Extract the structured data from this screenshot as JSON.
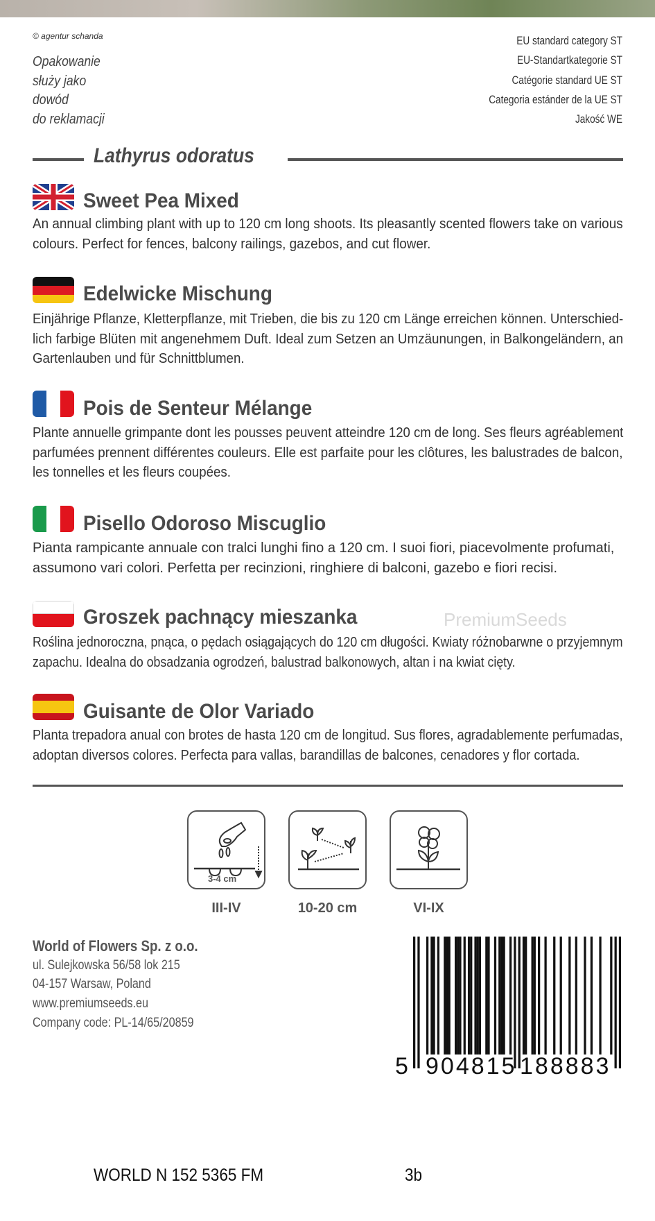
{
  "header": {
    "copyright": "© agentur schanda",
    "complaint_note": [
      "Opakowanie",
      "służy jako",
      "dowód",
      "do reklamacji"
    ],
    "eu_category": [
      "EU standard category ST",
      "EU-Standartkategorie ST",
      "Catégorie standard UE ST",
      "Categoria estánder de la UE ST",
      "Jakość WE"
    ]
  },
  "latin_name": "Lathyrus odoratus",
  "watermark": "PremiumSeeds",
  "sections": [
    {
      "flag": "uk-flag",
      "title": "Sweet Pea Mixed",
      "lines": [
        "An annual climbing plant with up to 120 cm long shoots. Its pleasantly scented flowers take on various",
        "colours. Perfect for fences, balcony railings, gazebos, and cut flower."
      ]
    },
    {
      "flag": "germany-flag",
      "title": "Edelwicke Mischung",
      "lines": [
        "Einjährige Pflanze, Kletterpflanze, mit Trieben, die bis zu 120 cm Länge erreichen können. Unterschied-",
        "lich farbige Blüten mit angenehmem Duft. Ideal zum Setzen an Umzäunungen, in Balkongeländern, an",
        "Gartenlauben und für Schnittblumen."
      ]
    },
    {
      "flag": "france-flag",
      "title": "Pois de Senteur Mélange",
      "lines": [
        "Plante annuelle grimpante dont les pousses peuvent atteindre 120 cm de long. Ses fleurs agréablement",
        "parfumées prennent différentes couleurs. Elle est parfaite pour les clôtures, les balustrades de balcon,",
        "les tonnelles et les fleurs coupées."
      ]
    },
    {
      "flag": "italy-flag",
      "title": "Pisello Odoroso Miscuglio",
      "lines": [
        "Pianta rampicante annuale con tralci lunghi fino a 120 cm. I suoi fiori, piacevolmente profumati,",
        "assumono vari colori. Perfetta per recinzioni, ringhiere di balconi, gazebo e fiori recisi."
      ]
    },
    {
      "flag": "poland-flag",
      "title": "Groszek pachnący mieszanka",
      "lines": [
        "Roślina jednoroczna, pnąca, o pędach osiągających do 120 cm długości. Kwiaty różnobarwne o przyjemnym",
        "zapachu. Idealna do obsadzania ogrodzeń, balustrad balkonowych, altan i na kwiat cięty."
      ]
    },
    {
      "flag": "spain-flag",
      "title": "Guisante de Olor Variado",
      "lines": [
        "Planta trepadora anual con brotes de hasta 120 cm de longitud. Sus flores, agradablemente perfumadas,",
        "adoptan diversos colores. Perfecta para vallas, barandillas de balcones, cenadores y flor cortada."
      ]
    }
  ],
  "growing_icons": [
    {
      "icon": "sowing-hand-icon",
      "depth": "3-4 cm",
      "label": "III-IV"
    },
    {
      "icon": "plant-spacing-icon",
      "label": "10-20 cm"
    },
    {
      "icon": "flowering-plant-icon",
      "label": "VI-IX"
    }
  ],
  "company": {
    "name": "World of Flowers Sp. z o.o.",
    "street": "ul. Sulejkowska 56/58 lok 215",
    "city": "04-157 Warsaw, Poland",
    "website": "www.premiumseeds.eu",
    "code": "Company code: PL-14/65/20859"
  },
  "barcode": {
    "digits": "5904815188883",
    "first": "5",
    "left": "904815",
    "right": "188883"
  },
  "footer": {
    "code": "WORLD N 152 5365  FM",
    "variant": "3b"
  }
}
